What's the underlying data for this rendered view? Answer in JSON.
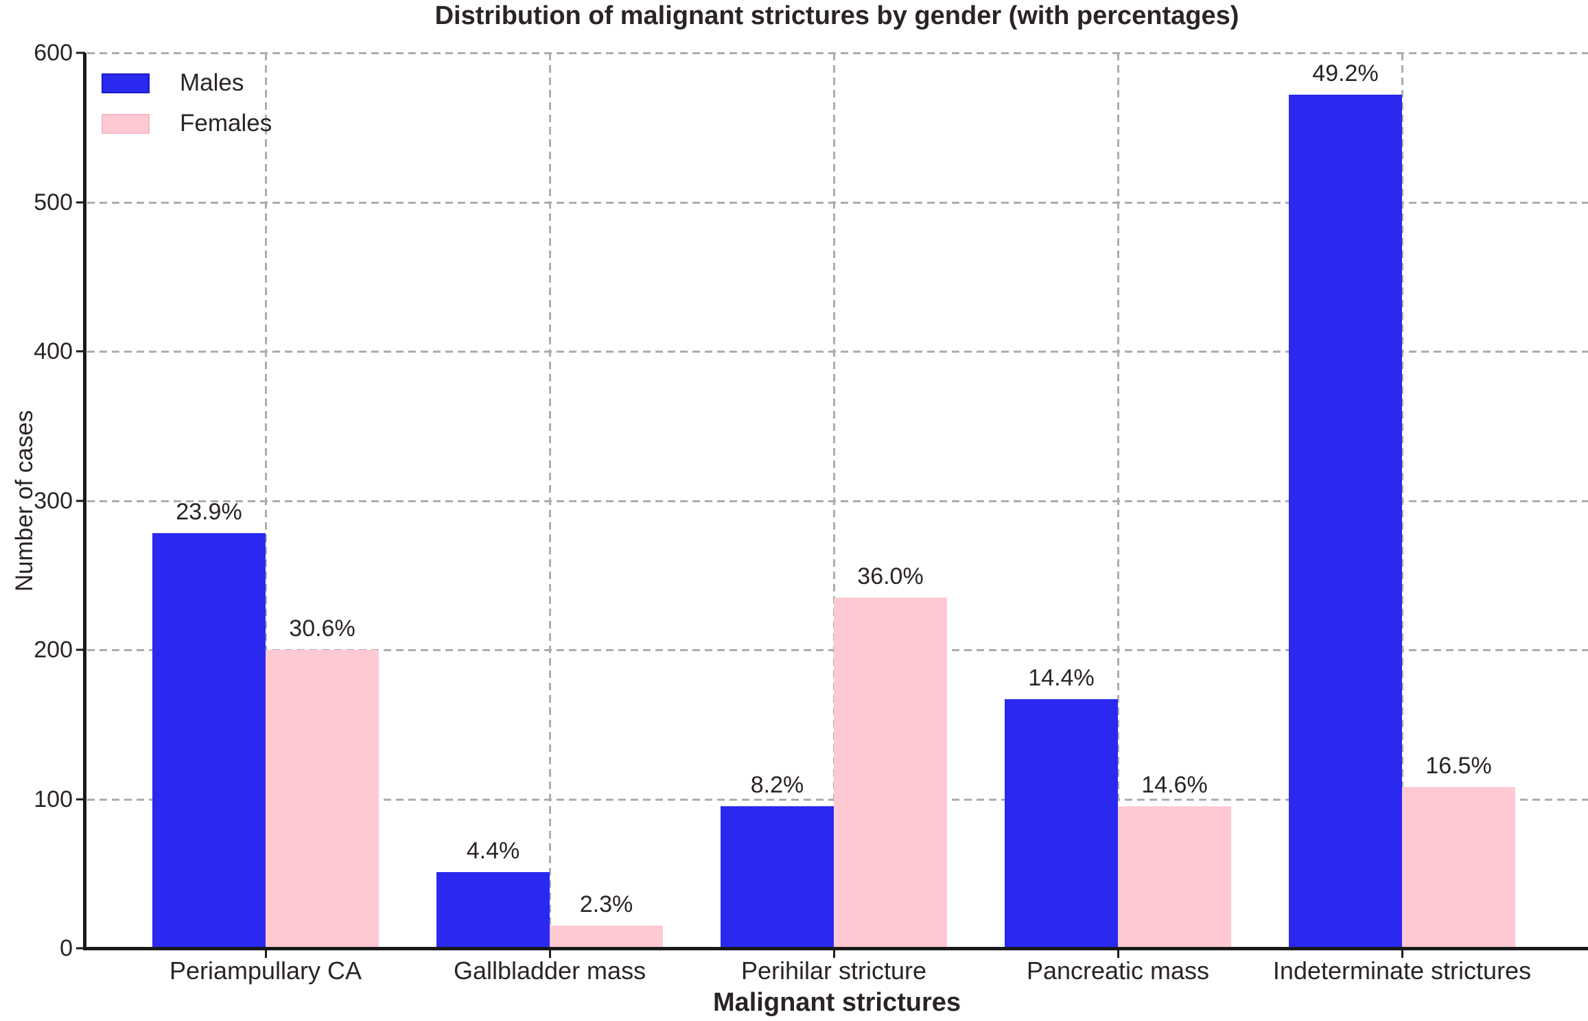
{
  "title": "Distribution of malignant strictures by gender (with percentages)",
  "legend": {
    "position": "upper left",
    "entries": [
      {
        "label": "Males",
        "swatch_color": "#2b29f0",
        "swatch_border": "#1c1ac4"
      },
      {
        "label": "Females",
        "swatch_color": "#ffc9d3",
        "swatch_border": "#f6b7c4"
      }
    ]
  },
  "chart_data": {
    "type": "bar",
    "title": "Distribution of malignant strictures by gender (with percentages)",
    "xlabel": "Malignant strictures",
    "ylabel": "Number of cases",
    "categories": [
      "Periampullary CA",
      "Gallbladder mass",
      "Perihilar stricture",
      "Pancreatic mass",
      "Indeterminate strictures"
    ],
    "series": [
      {
        "name": "Males",
        "color": "#2b29f0",
        "values": [
          278,
          51,
          95,
          167,
          572
        ],
        "percent_labels": [
          "23.9%",
          "4.4%",
          "8.2%",
          "14.4%",
          "49.2%"
        ]
      },
      {
        "name": "Females",
        "color": "#ffc9d3",
        "values": [
          200,
          15,
          235,
          95,
          108
        ],
        "percent_labels": [
          "30.6%",
          "2.3%",
          "36.0%",
          "14.6%",
          "16.5%"
        ]
      }
    ],
    "ylim": [
      0,
      600
    ],
    "yticks": [
      0,
      100,
      200,
      300,
      400,
      500,
      600
    ],
    "grid": "dashed, horizontal and vertical",
    "legend_position": "upper left",
    "colors": {
      "males_bar": "#2b29f0",
      "females_bar": "#ffc9d3",
      "gridline": "#adadad",
      "axis": "#1a1a1a",
      "text": "#2b2424",
      "background": "#ffffff"
    }
  }
}
